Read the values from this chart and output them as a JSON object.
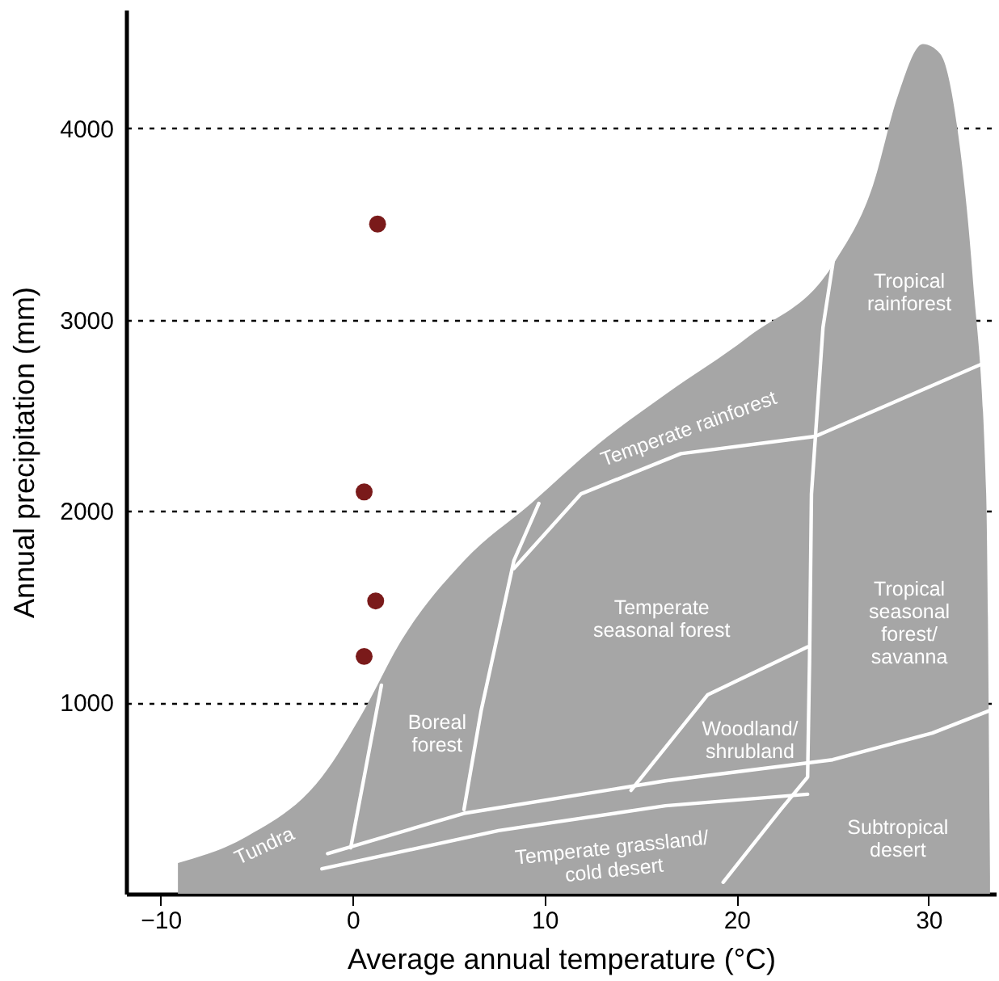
{
  "chart_data": {
    "type": "scatter",
    "xlabel": "Average annual temperature (°C)",
    "ylabel": "Annual precipitation (mm)",
    "x": [
      1.3,
      0.6,
      1.2,
      0.6
    ],
    "series": [
      {
        "type": "area",
        "color": "#a6a6a6",
        "x": [
          -9.1,
          -5.5,
          -1.6,
          0.6,
          2.4,
          5.8,
          9.3,
          12.8,
          16.3,
          20.6,
          25.1,
          27.1,
          28.4,
          29.7,
          30.6,
          31.5,
          32.3,
          33.0,
          33.2
        ],
        "values": [
          160,
          300,
          610,
          960,
          1300,
          1740,
          2040,
          2350,
          2610,
          2910,
          3300,
          3700,
          4170,
          4440,
          4390,
          4000,
          3220,
          2090,
          90
        ]
      },
      {
        "type": "line",
        "color": "#ffffff",
        "x": [
          -0.1,
          0.6,
          1.5
        ],
        "values": [
          240,
          610,
          1090
        ]
      },
      {
        "type": "line",
        "color": "#ffffff",
        "x": [
          -1.3,
          5.8,
          16.3,
          25,
          30.2,
          33.5
        ],
        "values": [
          210,
          420,
          590,
          700,
          840,
          970
        ]
      },
      {
        "type": "line",
        "color": "#ffffff",
        "x": [
          -1.6,
          7.6,
          16.3,
          23.7
        ],
        "values": [
          130,
          330,
          460,
          520
        ]
      },
      {
        "type": "line",
        "color": "#ffffff",
        "x": [
          5.8,
          6.7,
          8.4,
          9.7
        ],
        "values": [
          440,
          960,
          1740,
          2040
        ]
      },
      {
        "type": "line",
        "color": "#ffffff",
        "x": [
          8.4,
          11.9,
          17.1,
          24.1,
          33.5
        ],
        "values": [
          1700,
          2090,
          2300,
          2390,
          2800
        ]
      },
      {
        "type": "line",
        "color": "#ffffff",
        "x": [
          14.5,
          18.5,
          23.7
        ],
        "values": [
          540,
          1040,
          1290
        ]
      },
      {
        "type": "line",
        "color": "#ffffff",
        "x": [
          19.3,
          22.3,
          23.7,
          23.8,
          23.9,
          24.5,
          25.1
        ],
        "values": [
          60,
          440,
          610,
          1220,
          2090,
          2960,
          3350
        ]
      },
      {
        "color": "#7a1a1a",
        "marker": "circle",
        "values": [
          3500,
          2100,
          1530,
          1240
        ]
      }
    ],
    "xlim": [
      -11.8,
      33.5
    ],
    "ylim": [
      0,
      4620
    ],
    "xticks": [
      -10,
      0,
      10,
      20,
      30
    ],
    "yticks": [
      1000,
      2000,
      3000,
      4000
    ],
    "grid": "y",
    "annotations": [
      "Tundra",
      "Boreal\nforest",
      "Temperate rainforest",
      "Temperate\nseasonal forest",
      "Woodland/\nshrubland",
      "Temperate grassland/\ncold desert",
      "Tropical\nrainforest",
      "Tropical\nseasonal\nforest/\nsavanna",
      "Subtropical\ndesert"
    ]
  }
}
